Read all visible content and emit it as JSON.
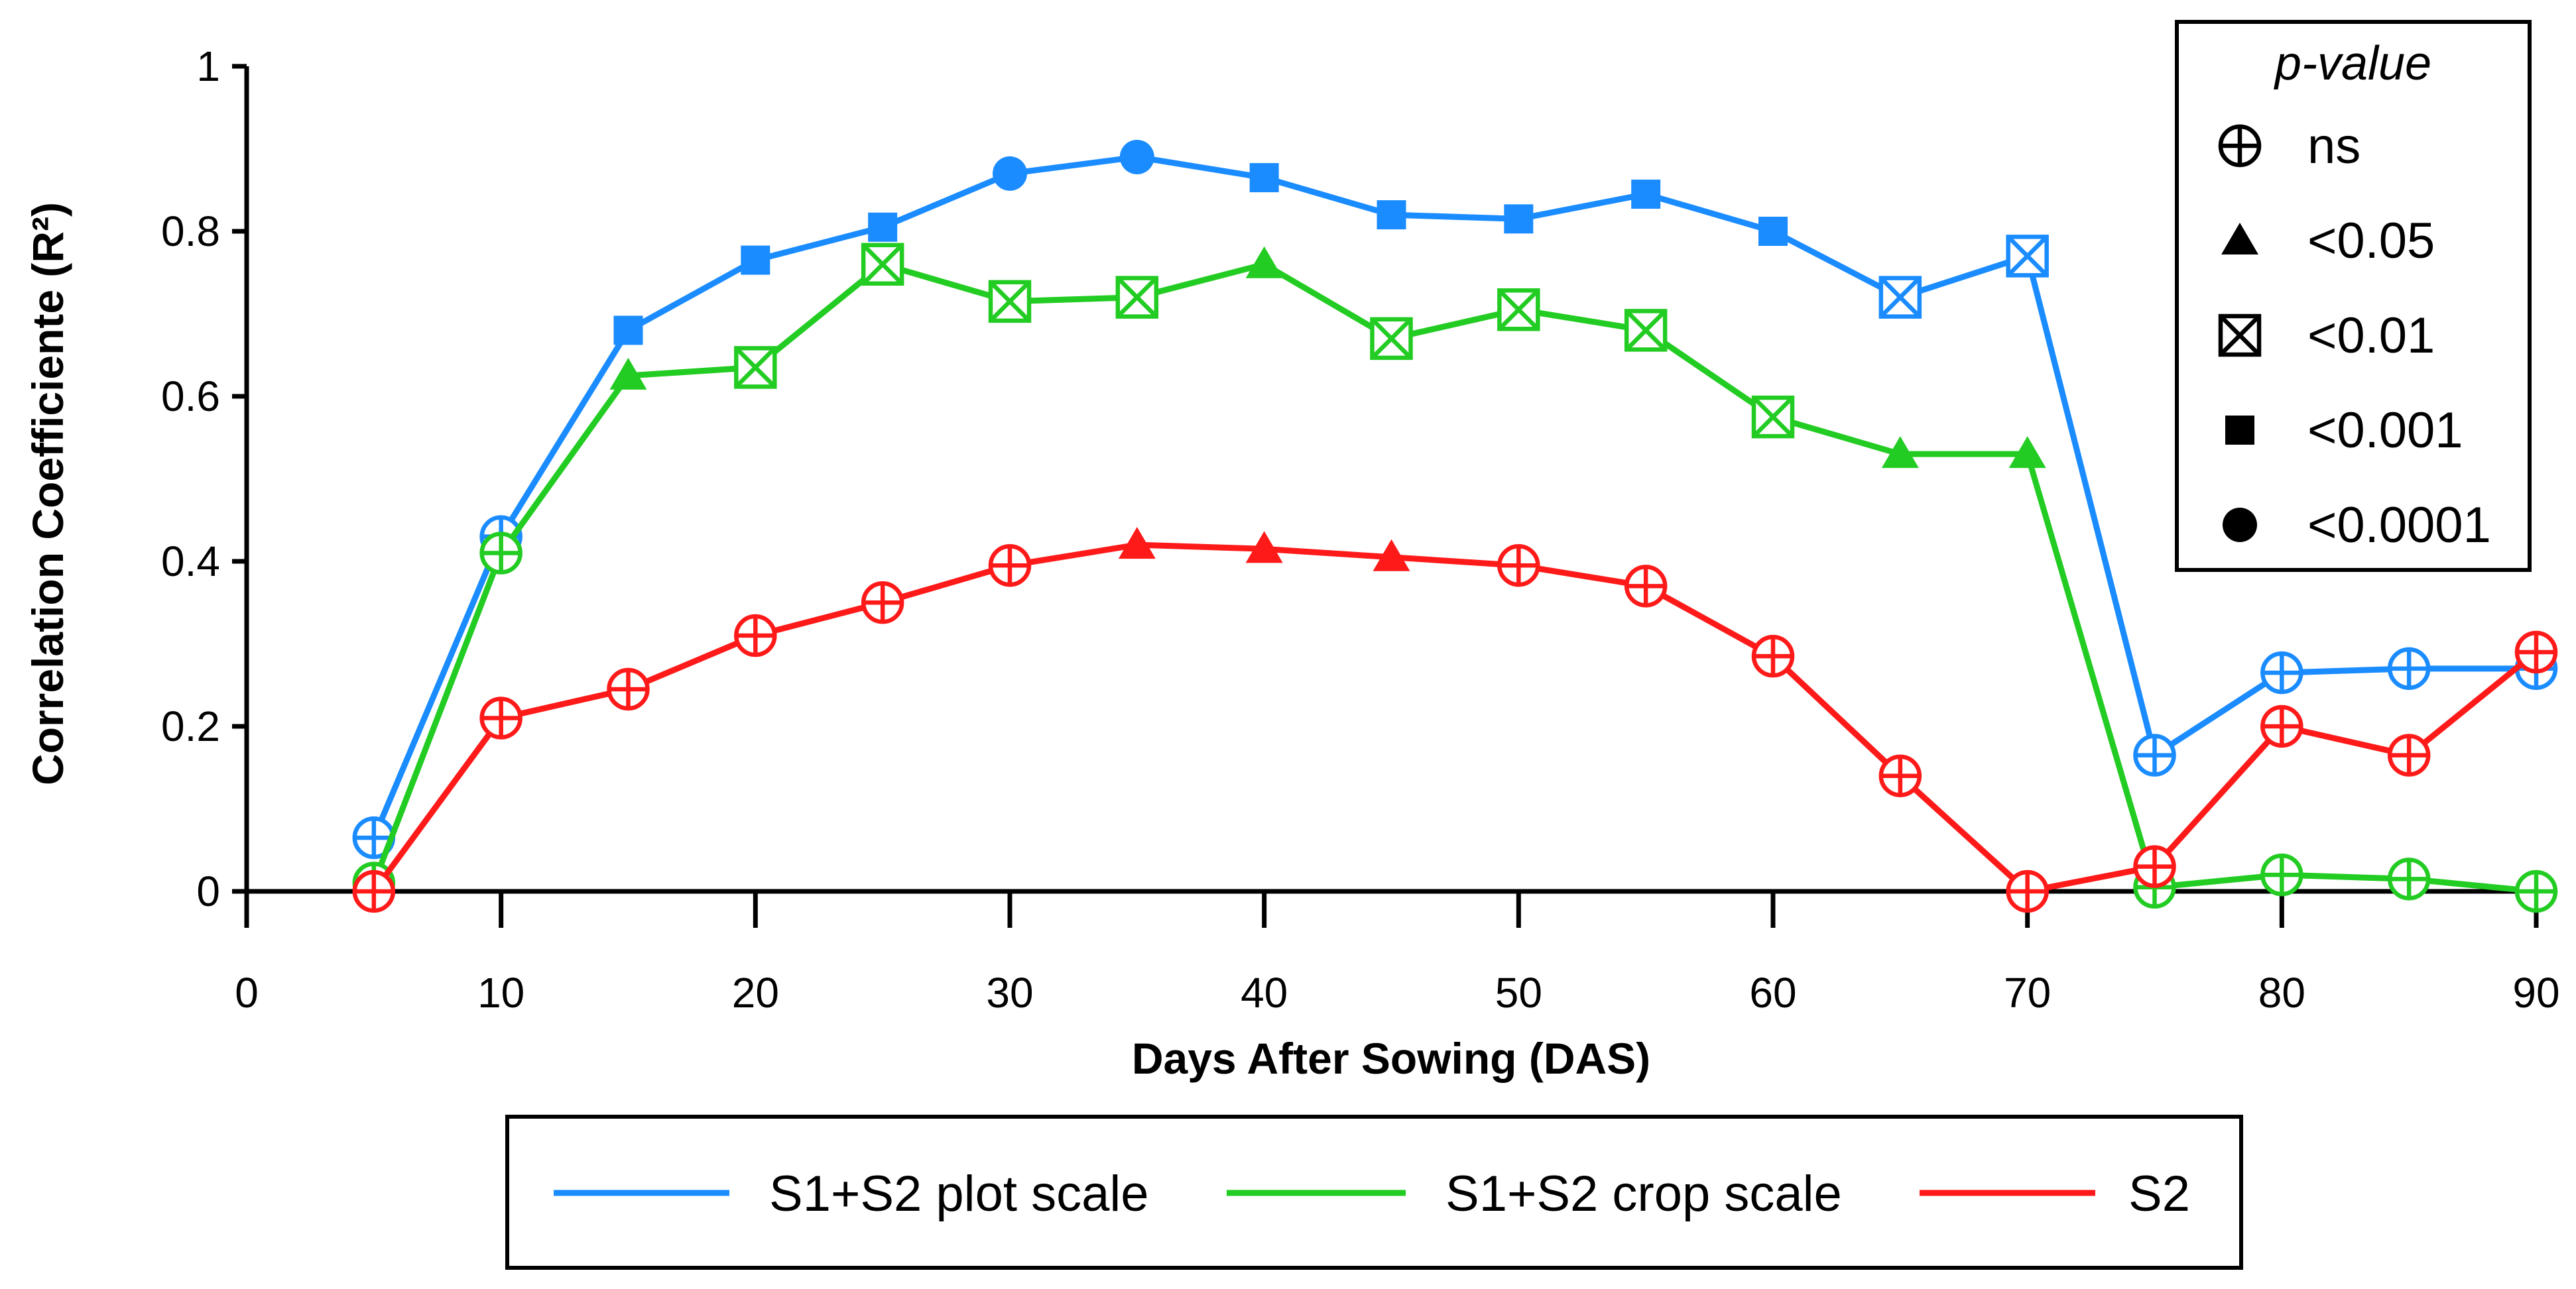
{
  "chart_data": {
    "type": "line",
    "xlabel": "Days After Sowing (DAS)",
    "ylabel": "Correlation Coefficiente (R²)",
    "xlim": [
      0,
      90
    ],
    "ylim": [
      0,
      1
    ],
    "x_ticks": [
      0,
      10,
      20,
      30,
      40,
      50,
      60,
      70,
      80,
      90
    ],
    "y_ticks": [
      0,
      0.2,
      0.4,
      0.6,
      0.8,
      1
    ],
    "y_tick_labels": [
      "0",
      "0.2",
      "0.4",
      "0.6",
      "0.8",
      "1"
    ],
    "grid": false,
    "legend_position": "bottom",
    "x": [
      5,
      10,
      15,
      20,
      25,
      30,
      35,
      40,
      45,
      50,
      55,
      60,
      65,
      70,
      75,
      80,
      85,
      90
    ],
    "series": [
      {
        "name": "S1+S2 plot scale",
        "color": "#1a8cff",
        "values": [
          0.065,
          0.43,
          0.68,
          0.765,
          0.805,
          0.87,
          0.89,
          0.865,
          0.82,
          0.815,
          0.845,
          0.8,
          0.72,
          0.77,
          0.165,
          0.265,
          0.27,
          0.27
        ],
        "markers": [
          "ns",
          "ns",
          "p001",
          "p001",
          "p001",
          "p0001",
          "p0001",
          "p001",
          "p001",
          "p001",
          "p001",
          "p001",
          "p01",
          "p01",
          "ns",
          "ns",
          "ns",
          "ns"
        ]
      },
      {
        "name": "S1+S2 crop scale",
        "color": "#22cc22",
        "values": [
          0.01,
          0.41,
          0.625,
          0.635,
          0.76,
          0.715,
          0.72,
          0.76,
          0.67,
          0.705,
          0.68,
          0.575,
          0.53,
          0.53,
          0.005,
          0.02,
          0.015,
          0.0
        ],
        "markers": [
          "ns",
          "ns",
          "p05",
          "p01",
          "p01",
          "p01",
          "p01",
          "p05",
          "p01",
          "p01",
          "p01",
          "p01",
          "p05",
          "p05",
          "ns",
          "ns",
          "ns",
          "ns"
        ]
      },
      {
        "name": "S2",
        "color": "#ff1a1a",
        "values": [
          0.0,
          0.21,
          0.245,
          0.31,
          0.35,
          0.395,
          0.42,
          0.415,
          0.405,
          0.395,
          0.37,
          0.285,
          0.14,
          0.0,
          0.03,
          0.2,
          0.165,
          0.29
        ],
        "markers": [
          "ns",
          "ns",
          "ns",
          "ns",
          "ns",
          "ns",
          "p05",
          "p05",
          "p05",
          "ns",
          "ns",
          "ns",
          "ns",
          "ns",
          "ns",
          "ns",
          "ns",
          "ns"
        ]
      }
    ],
    "pvalue_legend": {
      "title": "p-value",
      "items": [
        {
          "key": "ns",
          "label": "ns"
        },
        {
          "key": "p05",
          "label": "<0.05"
        },
        {
          "key": "p01",
          "label": "<0.01"
        },
        {
          "key": "p001",
          "label": "<0.001"
        },
        {
          "key": "p0001",
          "label": "<0.0001"
        }
      ]
    }
  }
}
